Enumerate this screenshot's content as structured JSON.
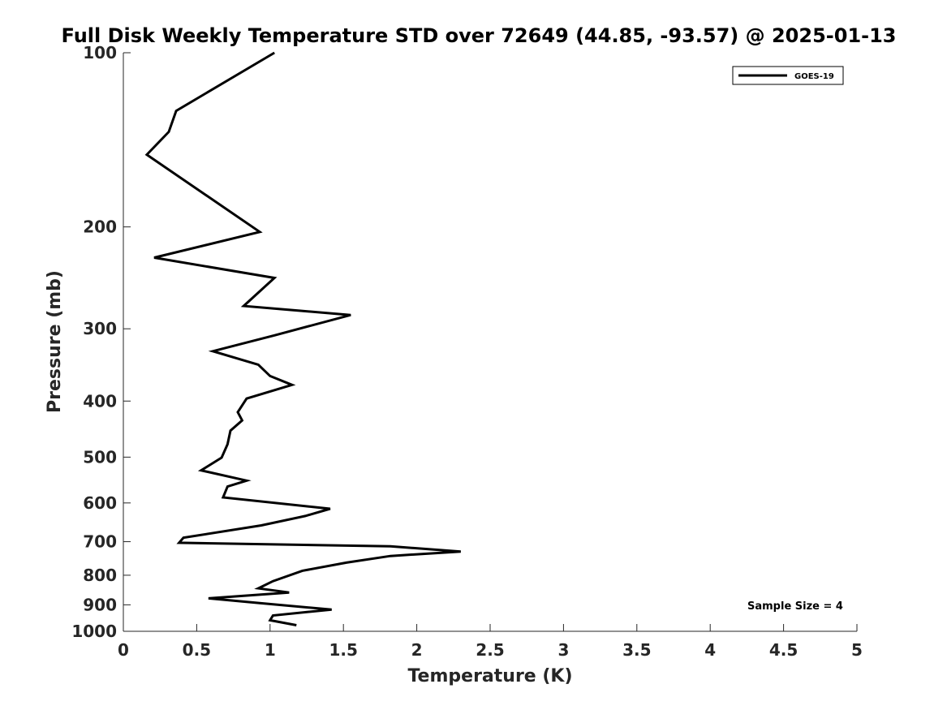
{
  "chart_data": {
    "type": "line",
    "title": "Full Disk Weekly Temperature STD over 72649 (44.85, -93.57) @ 2025-01-13",
    "xlabel": "Temperature (K)",
    "ylabel": "Pressure (mb)",
    "xlim": [
      0,
      5
    ],
    "ylim": [
      100,
      1000
    ],
    "y_scale": "log",
    "y_reversed": true,
    "x_ticks": [
      "0",
      "0.5",
      "1",
      "1.5",
      "2",
      "2.5",
      "3",
      "3.5",
      "4",
      "4.5",
      "5"
    ],
    "y_ticks": [
      "100",
      "200",
      "300",
      "400",
      "500",
      "600",
      "700",
      "800",
      "900",
      "1000"
    ],
    "grid": false,
    "legend_position": "top-right",
    "line_color": "#000000",
    "series": [
      {
        "name": "GOES-19",
        "x": [
          1.03,
          0.36,
          0.31,
          0.16,
          0.93,
          0.21,
          1.03,
          0.82,
          1.55,
          1.03,
          0.61,
          0.92,
          1.0,
          1.15,
          0.84,
          0.78,
          0.81,
          0.73,
          0.71,
          0.67,
          0.53,
          0.84,
          0.71,
          0.68,
          1.41,
          1.24,
          0.94,
          0.41,
          0.38,
          1.82,
          2.3,
          1.82,
          1.52,
          1.22,
          1.02,
          0.92,
          1.13,
          0.58,
          0.93,
          1.42,
          1.02,
          1.0,
          1.18
        ],
        "y": [
          100,
          126,
          137,
          150,
          204,
          226,
          245,
          274,
          284,
          308,
          328,
          346,
          362,
          375,
          396,
          418,
          432,
          450,
          475,
          501,
          527,
          549,
          562,
          587,
          614,
          632,
          656,
          689,
          703,
          713,
          728,
          741,
          761,
          786,
          819,
          843,
          857,
          877,
          894,
          917,
          939,
          957,
          976
        ]
      }
    ]
  },
  "annotation": {
    "sample_size_text": "Sample Size = 4"
  }
}
